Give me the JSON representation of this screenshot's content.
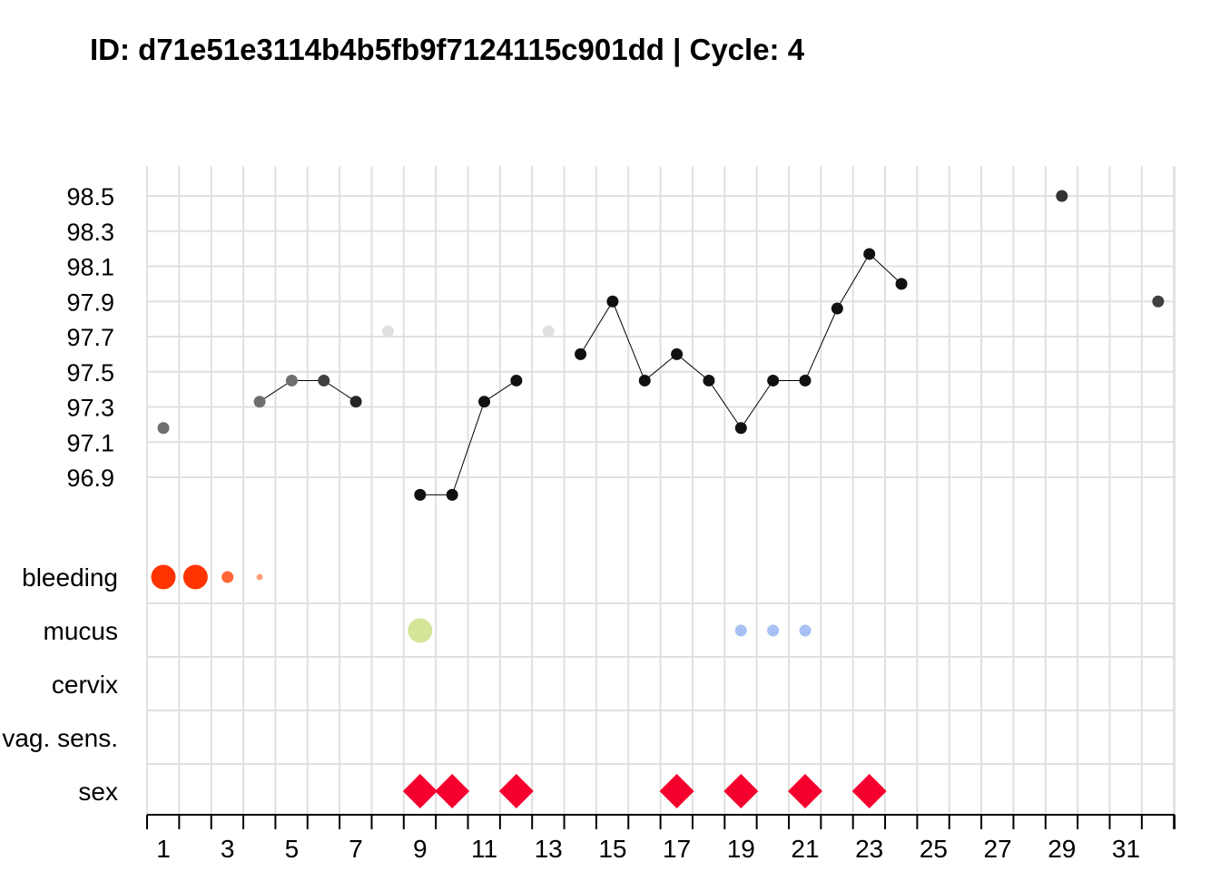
{
  "chart_data": {
    "type": "scatter",
    "title": "ID: d71e51e3114b4b5fb9f7124115c901dd | Cycle: 4",
    "colors": {
      "grid": "#e0e0e0",
      "bleeding": "#ff3300",
      "bleeding_light": "#ff6633",
      "bleeding_spotting": "#f9a07a",
      "mucus_fertile": "#d5e59a",
      "mucus_other": "#a7c1f5",
      "sex": "#f5002e",
      "temp_line": "#000000"
    },
    "x_axis": {
      "range": [
        1,
        32
      ],
      "tick_labels": [
        "1",
        "3",
        "5",
        "7",
        "9",
        "11",
        "13",
        "15",
        "17",
        "19",
        "21",
        "23",
        "25",
        "27",
        "29",
        "31"
      ],
      "tick_values": [
        1,
        3,
        5,
        7,
        9,
        11,
        13,
        15,
        17,
        19,
        21,
        23,
        25,
        27,
        29,
        31
      ]
    },
    "temperature": {
      "ylim": [
        96.8,
        98.6
      ],
      "tick_labels": [
        "96.9",
        "97.1",
        "97.3",
        "97.5",
        "97.7",
        "97.9",
        "98.1",
        "98.3",
        "98.5"
      ],
      "tick_values": [
        96.9,
        97.1,
        97.3,
        97.5,
        97.7,
        97.9,
        98.1,
        98.3,
        98.5
      ],
      "points": [
        {
          "day": 1,
          "temp": 97.18,
          "color": "#6e6e6e"
        },
        {
          "day": 4,
          "temp": 97.33,
          "color": "#6e6e6e"
        },
        {
          "day": 5,
          "temp": 97.45,
          "color": "#6e6e6e"
        },
        {
          "day": 6,
          "temp": 97.45,
          "color": "#404040"
        },
        {
          "day": 7,
          "temp": 97.33,
          "color": "#252525"
        },
        {
          "day": 8,
          "temp": 97.73,
          "color": "#e0e0e0"
        },
        {
          "day": 9,
          "temp": 96.8,
          "color": "#111111"
        },
        {
          "day": 10,
          "temp": 96.8,
          "color": "#111111"
        },
        {
          "day": 11,
          "temp": 97.33,
          "color": "#111111"
        },
        {
          "day": 12,
          "temp": 97.45,
          "color": "#111111"
        },
        {
          "day": 13,
          "temp": 97.73,
          "color": "#e0e0e0"
        },
        {
          "day": 14,
          "temp": 97.6,
          "color": "#111111"
        },
        {
          "day": 15,
          "temp": 97.9,
          "color": "#111111"
        },
        {
          "day": 16,
          "temp": 97.45,
          "color": "#111111"
        },
        {
          "day": 17,
          "temp": 97.6,
          "color": "#111111"
        },
        {
          "day": 18,
          "temp": 97.45,
          "color": "#111111"
        },
        {
          "day": 19,
          "temp": 97.18,
          "color": "#111111"
        },
        {
          "day": 20,
          "temp": 97.45,
          "color": "#111111"
        },
        {
          "day": 21,
          "temp": 97.45,
          "color": "#111111"
        },
        {
          "day": 22,
          "temp": 97.86,
          "color": "#111111"
        },
        {
          "day": 23,
          "temp": 98.17,
          "color": "#111111"
        },
        {
          "day": 24,
          "temp": 98.0,
          "color": "#111111"
        },
        {
          "day": 29,
          "temp": 98.5,
          "color": "#333333"
        },
        {
          "day": 32,
          "temp": 97.9,
          "color": "#404040"
        }
      ],
      "line_segments": [
        [
          4,
          5,
          6,
          7
        ],
        [
          9,
          10,
          11,
          12
        ],
        [
          14,
          15,
          16,
          17,
          18,
          19,
          20,
          21,
          22,
          23,
          24
        ]
      ]
    },
    "rows": [
      "bleeding",
      "mucus",
      "cervix",
      "vag. sens.",
      "sex"
    ],
    "bleeding": [
      {
        "day": 1,
        "size": 4,
        "color": "#ff3300"
      },
      {
        "day": 2,
        "size": 4,
        "color": "#ff3300"
      },
      {
        "day": 3,
        "size": 2,
        "color": "#ff6633"
      },
      {
        "day": 4,
        "size": 1,
        "color": "#f9a07a"
      }
    ],
    "mucus": [
      {
        "day": 9,
        "size": 4,
        "color": "#d5e59a"
      },
      {
        "day": 19,
        "size": 2,
        "color": "#a7c1f5"
      },
      {
        "day": 20,
        "size": 2,
        "color": "#a7c1f5"
      },
      {
        "day": 21,
        "size": 2,
        "color": "#a7c1f5"
      }
    ],
    "cervix": [],
    "vag_sens": [],
    "sex": [
      9,
      10,
      12,
      17,
      19,
      21,
      23
    ]
  }
}
